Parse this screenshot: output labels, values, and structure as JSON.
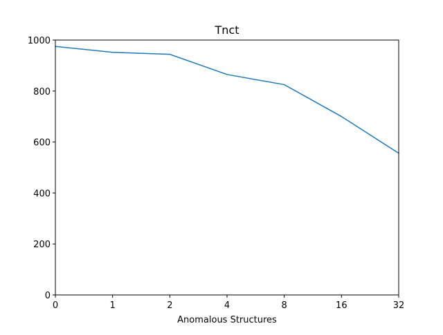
{
  "chart_data": {
    "type": "line",
    "title": "Tnct",
    "xlabel": "Anomalous Structures",
    "ylabel": "",
    "categories": [
      "0",
      "1",
      "2",
      "4",
      "8",
      "16",
      "32"
    ],
    "series": [
      {
        "values": [
          975,
          952,
          944,
          865,
          825,
          700,
          556
        ],
        "color": "#1f77b4"
      }
    ],
    "ylim": [
      0,
      1000
    ],
    "yticks": [
      0,
      200,
      400,
      600,
      800,
      1000
    ],
    "grid": false,
    "legend": "none"
  }
}
